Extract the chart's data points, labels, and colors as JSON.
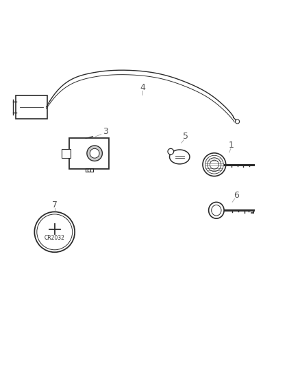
{
  "title": "",
  "background_color": "#ffffff",
  "line_color": "#2b2b2b",
  "label_color": "#555555",
  "figsize": [
    4.38,
    5.33
  ],
  "dpi": 100,
  "battery_text": "CR2032",
  "item_labels": [
    "1",
    "3",
    "4",
    "5",
    "6",
    "7"
  ]
}
